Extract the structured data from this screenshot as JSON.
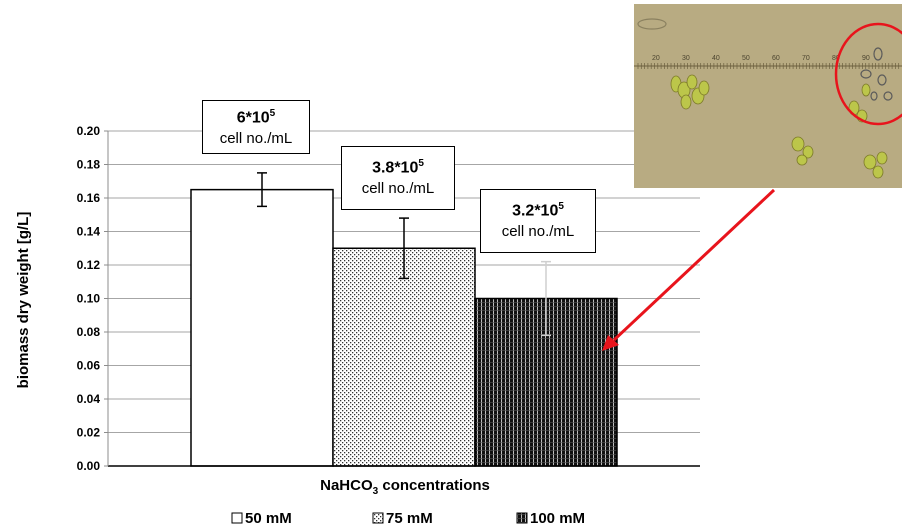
{
  "chart_data": {
    "type": "bar",
    "categories": [
      "50 mM",
      "75 mM",
      "100 mM"
    ],
    "values": [
      0.165,
      0.13,
      0.1
    ],
    "errors": [
      0.01,
      0.018,
      0.022
    ],
    "ylim": [
      0,
      0.2
    ],
    "yticks": [
      "0.00",
      "0.02",
      "0.04",
      "0.06",
      "0.08",
      "0.10",
      "0.12",
      "0.14",
      "0.16",
      "0.18",
      "0.20"
    ],
    "ylabel": "biomass dry weight [g/L]",
    "xlabel": {
      "main": "NaHCO",
      "sub": "3",
      "rest": " concentrations"
    },
    "legend": [
      {
        "label": "50 mM",
        "pattern": "white"
      },
      {
        "label": "75 mM",
        "pattern": "dots"
      },
      {
        "label": "100 mM",
        "pattern": "dark"
      }
    ],
    "legend_position": "bottom",
    "grid": true,
    "annotations": [
      {
        "base": "6*10",
        "exp": "5",
        "unit": "cell no./mL"
      },
      {
        "base": "3.8*10",
        "exp": "5",
        "unit": "cell no./mL"
      },
      {
        "base": "3.2*10",
        "exp": "5",
        "unit": "cell no./mL"
      }
    ],
    "inset_scale_labels": [
      "20",
      "30",
      "40",
      "50",
      "60",
      "70",
      "80",
      "90"
    ]
  },
  "colors": {
    "bar_border": "#000000",
    "grid": "#a6a6a6",
    "arrow": "#e8141c",
    "micrograph_bg": "#b3a57b",
    "cell": "#bcc64a",
    "circle": "#e8141c"
  }
}
